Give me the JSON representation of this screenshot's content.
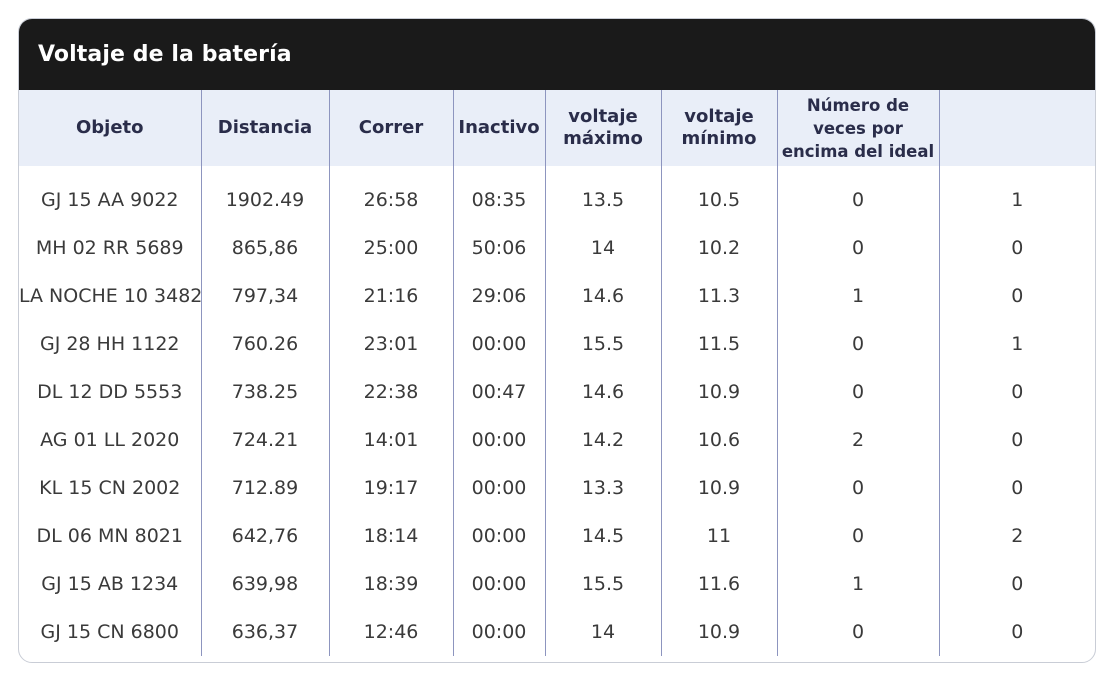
{
  "card": {
    "title": "Voltaje de la batería"
  },
  "table": {
    "columns": [
      "Objeto",
      "Distancia",
      "Correr",
      "Inactivo",
      "voltaje máximo",
      "voltaje mínimo",
      "Número de veces por encima del ideal",
      ""
    ],
    "rows": [
      [
        "GJ 15 AA 9022",
        "1902.49",
        "26:58",
        "08:35",
        "13.5",
        "10.5",
        "0",
        "1"
      ],
      [
        "MH 02 RR 5689",
        "865,86",
        "25:00",
        "50:06",
        "14",
        "10.2",
        "0",
        "0"
      ],
      [
        "LA NOCHE 10 3482",
        "797,34",
        "21:16",
        "29:06",
        "14.6",
        "11.3",
        "1",
        "0"
      ],
      [
        "GJ 28 HH 1122",
        "760.26",
        "23:01",
        "00:00",
        "15.5",
        "11.5",
        "0",
        "1"
      ],
      [
        "DL 12 DD 5553",
        "738.25",
        "22:38",
        "00:47",
        "14.6",
        "10.9",
        "0",
        "0"
      ],
      [
        "AG 01 LL 2020",
        "724.21",
        "14:01",
        "00:00",
        "14.2",
        "10.6",
        "2",
        "0"
      ],
      [
        "KL 15 CN 2002",
        "712.89",
        "19:17",
        "00:00",
        "13.3",
        "10.9",
        "0",
        "0"
      ],
      [
        "DL 06 MN 8021",
        "642,76",
        "18:14",
        "00:00",
        "14.5",
        "11",
        "0",
        "2"
      ],
      [
        "GJ 15 AB 1234",
        "639,98",
        "18:39",
        "00:00",
        "15.5",
        "11.6",
        "1",
        "0"
      ],
      [
        "GJ 15 CN 6800",
        "636,37",
        "12:46",
        "00:00",
        "14",
        "10.9",
        "0",
        "0"
      ]
    ]
  }
}
